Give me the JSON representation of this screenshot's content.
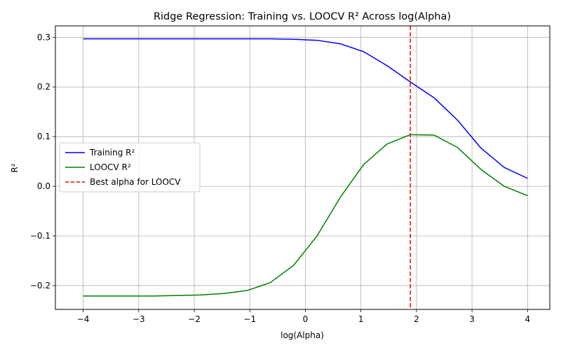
{
  "chart_data": {
    "type": "line",
    "title": "Ridge Regression: Training vs. LOOCV R² Across log(Alpha)",
    "xlabel": "log(Alpha)",
    "ylabel": "R²",
    "xlim": [
      -4.5,
      4.4
    ],
    "ylim": [
      -0.248,
      0.323
    ],
    "xticks": [
      -4,
      -3,
      -2,
      -1,
      0,
      1,
      2,
      3,
      4
    ],
    "xtick_labels": [
      "−4",
      "−3",
      "−2",
      "−1",
      "0",
      "1",
      "2",
      "3",
      "4"
    ],
    "yticks": [
      -0.2,
      -0.1,
      0.0,
      0.1,
      0.2,
      0.3
    ],
    "ytick_labels": [
      "−0.2",
      "−0.1",
      "0.0",
      "0.1",
      "0.2",
      "0.3"
    ],
    "grid": true,
    "legend_position": "center-left",
    "x": [
      -4.0,
      -3.58,
      -3.16,
      -2.74,
      -2.32,
      -1.89,
      -1.47,
      -1.05,
      -0.63,
      -0.21,
      0.21,
      0.63,
      1.05,
      1.47,
      1.89,
      2.32,
      2.74,
      3.16,
      3.58,
      4.0
    ],
    "series": [
      {
        "name": "Training R²",
        "color": "#0000ff",
        "style": "solid",
        "values": [
          0.297,
          0.297,
          0.297,
          0.297,
          0.297,
          0.297,
          0.297,
          0.297,
          0.297,
          0.296,
          0.294,
          0.287,
          0.271,
          0.243,
          0.21,
          0.178,
          0.133,
          0.077,
          0.038,
          0.016
        ]
      },
      {
        "name": "LOOCV R²",
        "color": "#008000",
        "style": "solid",
        "values": [
          -0.221,
          -0.221,
          -0.221,
          -0.221,
          -0.22,
          -0.219,
          -0.216,
          -0.21,
          -0.194,
          -0.159,
          -0.1,
          -0.022,
          0.044,
          0.085,
          0.104,
          0.103,
          0.078,
          0.034,
          0.0,
          -0.019
        ]
      }
    ],
    "vlines": [
      {
        "name": "Best alpha for LOOCV",
        "x": 1.89,
        "color": "#ff0000",
        "style": "dashed"
      }
    ]
  }
}
